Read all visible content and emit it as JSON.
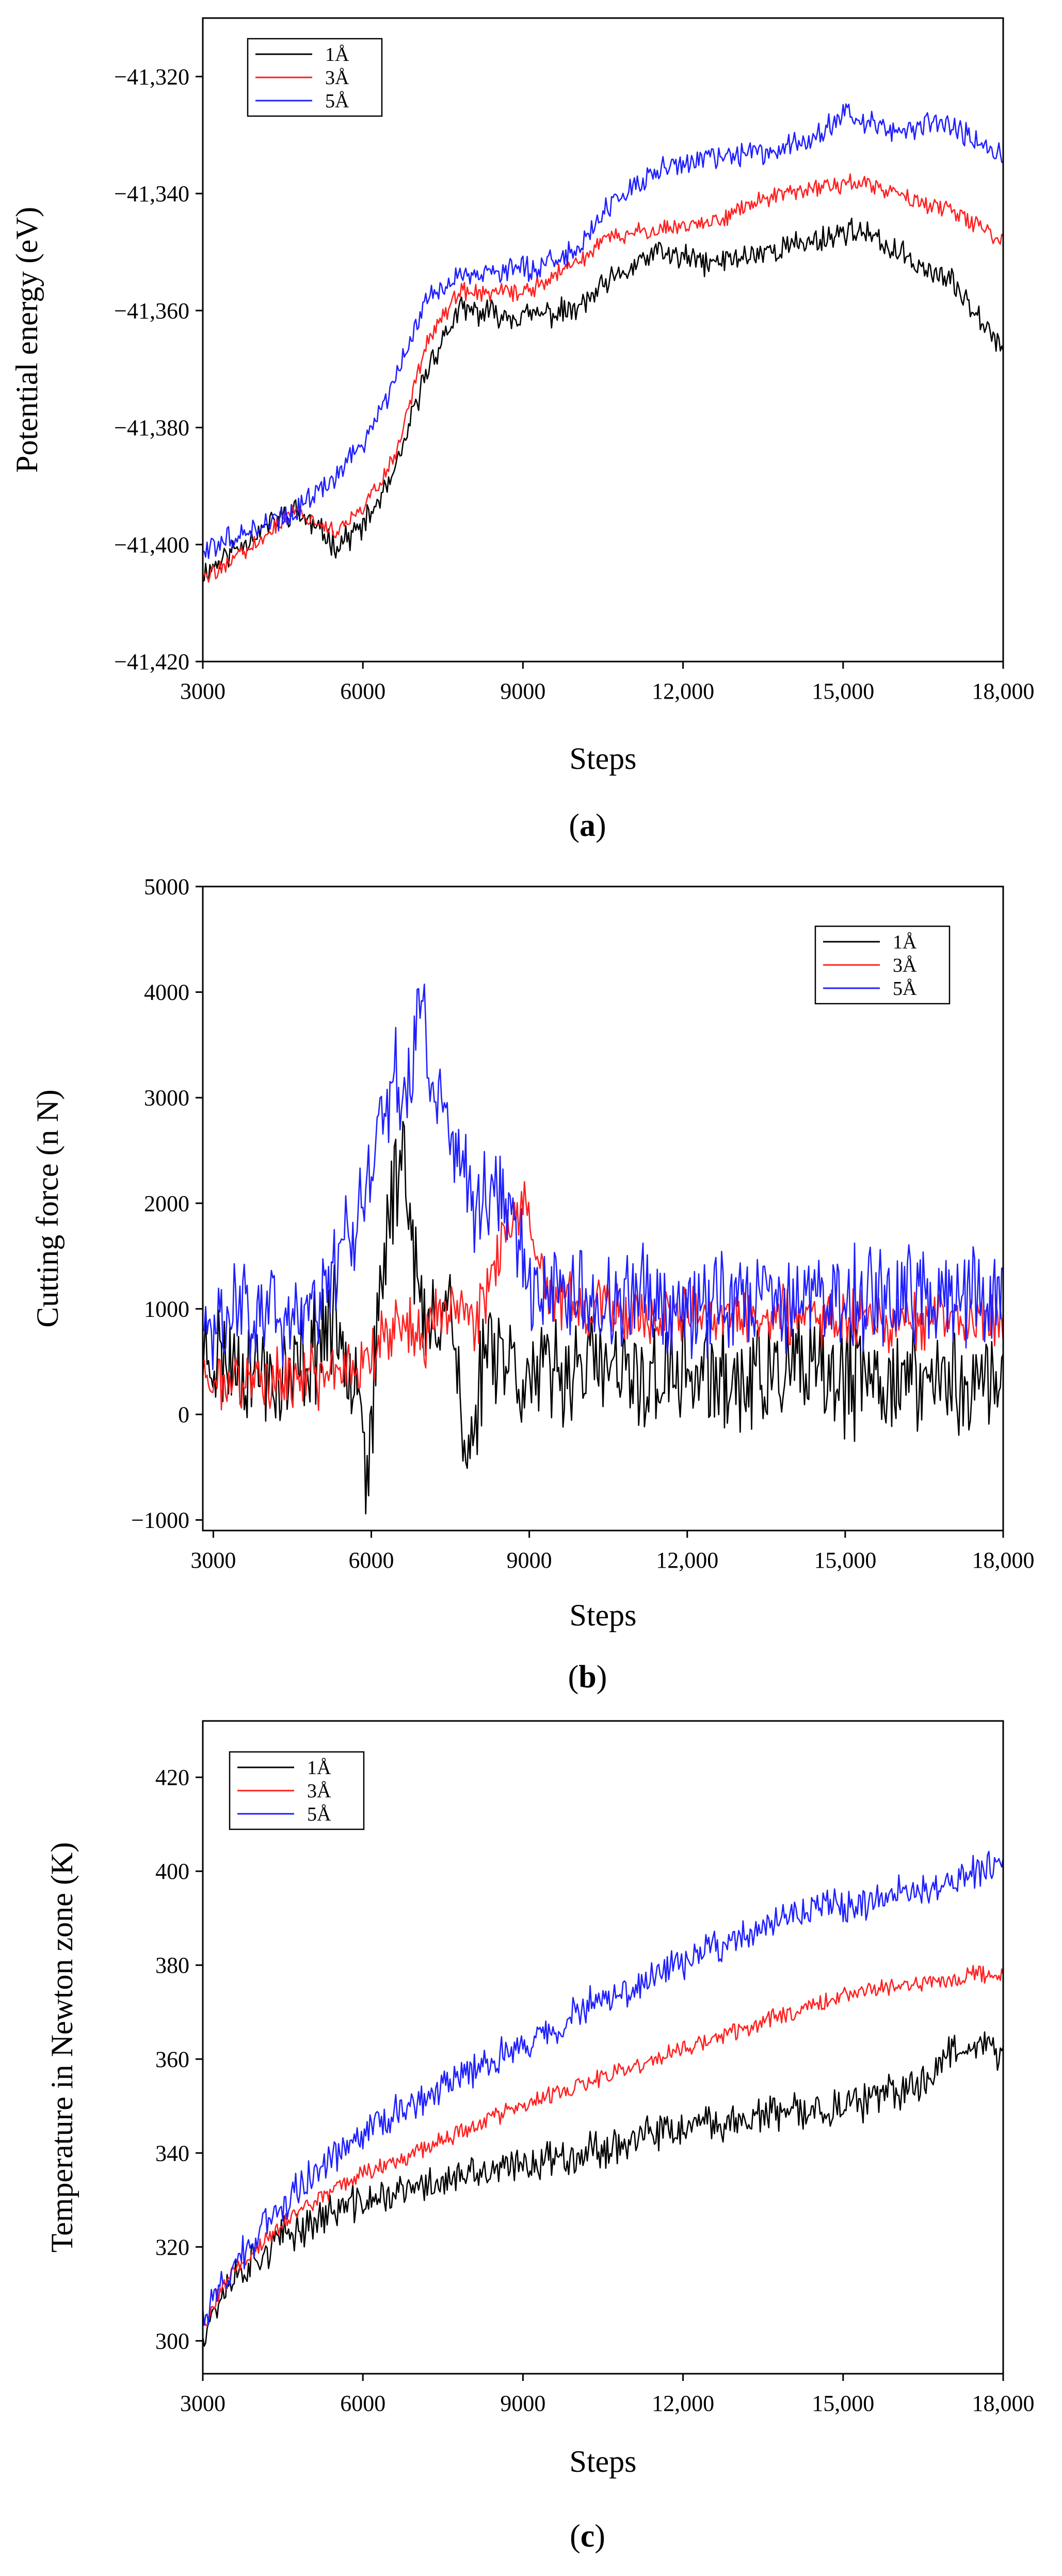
{
  "chart_data": [
    {
      "type": "line",
      "panel_label": "a",
      "xlabel": "Steps",
      "ylabel": "Potential energy (eV)",
      "xlim": [
        3000,
        18000
      ],
      "ylim": [
        -41420,
        -41310
      ],
      "xticks": [
        3000,
        6000,
        9000,
        12000,
        15000,
        18000
      ],
      "xtick_labels": [
        "3000",
        "6000",
        "9000",
        "12,000",
        "15,000",
        "18,000"
      ],
      "yticks": [
        -41420,
        -41400,
        -41380,
        -41360,
        -41340,
        -41320
      ],
      "ytick_labels": [
        "−41,420",
        "−41,400",
        "−41,380",
        "−41,360",
        "−41,340",
        "−41,320"
      ],
      "legend_position": "top-left",
      "noise_seed": 11,
      "series": [
        {
          "name": "1Å",
          "color": "#000000",
          "noise": 1.8,
          "x": [
            3000,
            4000,
            4700,
            5500,
            6000,
            6600,
            7200,
            7800,
            9000,
            10000,
            10500,
            11500,
            12500,
            13500,
            14500,
            15200,
            16000,
            17000,
            17500,
            18000
          ],
          "y": [
            -41405,
            -41398,
            -41394,
            -41400,
            -41397,
            -41388,
            -41370,
            -41360,
            -41361,
            -41360,
            -41356,
            -41350,
            -41352,
            -41350,
            -41348,
            -41346,
            -41350,
            -41355,
            -41360,
            -41366
          ]
        },
        {
          "name": "3Å",
          "color": "#ff2020",
          "noise": 1.2,
          "x": [
            3000,
            4000,
            4700,
            5500,
            6000,
            6600,
            7200,
            7800,
            9000,
            10000,
            10500,
            11500,
            12500,
            13500,
            14500,
            15200,
            16000,
            17000,
            18000
          ],
          "y": [
            -41406,
            -41400,
            -41394,
            -41398,
            -41394,
            -41385,
            -41365,
            -41357,
            -41357,
            -41352,
            -41348,
            -41346,
            -41345,
            -41341,
            -41339,
            -41338,
            -41340,
            -41343,
            -41348
          ]
        },
        {
          "name": "5Å",
          "color": "#1f1fff",
          "noise": 1.6,
          "x": [
            3000,
            4000,
            4700,
            5500,
            6000,
            6600,
            7200,
            7800,
            9000,
            10000,
            10300,
            10500,
            11500,
            12500,
            13500,
            14500,
            15000,
            16000,
            16800,
            17500,
            18000
          ],
          "y": [
            -41401,
            -41397,
            -41395,
            -41388,
            -41383,
            -41372,
            -41358,
            -41354,
            -41353,
            -41350,
            -41346,
            -41343,
            -41336,
            -41334,
            -41333,
            -41330,
            -41326,
            -41330,
            -41327,
            -41331,
            -41334
          ]
        }
      ]
    },
    {
      "type": "line",
      "panel_label": "b",
      "xlabel": "Steps",
      "ylabel": "Cutting force (n N)",
      "xlim": [
        2800,
        18000
      ],
      "ylim": [
        -1100,
        5000
      ],
      "xticks": [
        3000,
        6000,
        9000,
        12000,
        15000,
        18000
      ],
      "xtick_labels": [
        "3000",
        "6000",
        "9000",
        "12,000",
        "15,000",
        "18,000"
      ],
      "yticks": [
        -1000,
        0,
        1000,
        2000,
        3000,
        4000,
        5000
      ],
      "ytick_labels": [
        "−1000",
        "0",
        "1000",
        "2000",
        "3000",
        "4000",
        "5000"
      ],
      "legend_position": "top-right",
      "noise_seed": 23,
      "series": [
        {
          "name": "1Å",
          "color": "#000000",
          "noise": 420,
          "x": [
            2800,
            3500,
            4500,
            5200,
            5800,
            5900,
            6300,
            6600,
            7000,
            7500,
            7800,
            8200,
            9000,
            10000,
            11000,
            12000,
            13000,
            14000,
            15000,
            16000,
            17000,
            18000
          ],
          "y": [
            600,
            500,
            300,
            900,
            400,
            -700,
            1800,
            2600,
            700,
            1200,
            -600,
            800,
            300,
            500,
            300,
            400,
            300,
            400,
            300,
            350,
            300,
            300
          ]
        },
        {
          "name": "3Å",
          "color": "#ff2020",
          "noise": 230,
          "x": [
            2800,
            4000,
            5000,
            5800,
            6500,
            7000,
            7500,
            8000,
            8500,
            8900,
            9300,
            10000,
            11000,
            12000,
            13000,
            14000,
            15000,
            16000,
            17000,
            18000
          ],
          "y": [
            350,
            320,
            350,
            500,
            900,
            700,
            1100,
            900,
            1700,
            1900,
            1200,
            1000,
            950,
            900,
            950,
            900,
            950,
            900,
            900,
            850
          ]
        },
        {
          "name": "5Å",
          "color": "#1f1fff",
          "noise": 380,
          "x": [
            2800,
            3500,
            4500,
            5300,
            5800,
            6400,
            6700,
            7000,
            7100,
            7400,
            8000,
            8500,
            9000,
            10000,
            11000,
            12000,
            13000,
            14000,
            15000,
            16000,
            17000,
            18000
          ],
          "y": [
            900,
            1000,
            900,
            1300,
            1900,
            3300,
            3100,
            4200,
            3100,
            2900,
            1900,
            2300,
            1200,
            1100,
            1100,
            1050,
            1150,
            1100,
            1100,
            1100,
            1150,
            1100
          ]
        }
      ]
    },
    {
      "type": "line",
      "panel_label": "c",
      "xlabel": "Steps",
      "ylabel": "Temperature in Newton zone (K)",
      "xlim": [
        3000,
        18000
      ],
      "ylim": [
        293,
        432
      ],
      "xticks": [
        3000,
        6000,
        9000,
        12000,
        15000,
        18000
      ],
      "xtick_labels": [
        "3000",
        "6000",
        "9000",
        "12,000",
        "15,000",
        "18,000"
      ],
      "yticks": [
        300,
        320,
        340,
        360,
        380,
        400,
        420
      ],
      "ytick_labels": [
        "300",
        "320",
        "340",
        "360",
        "380",
        "400",
        "420"
      ],
      "legend_position": "top-left",
      "noise_seed": 37,
      "series": [
        {
          "name": "1Å",
          "color": "#000000",
          "noise": 3.2,
          "x": [
            3000,
            3500,
            4500,
            5500,
            6500,
            7500,
            8500,
            9500,
            10500,
            11500,
            12500,
            13500,
            14500,
            15500,
            16500,
            17000,
            17500,
            18000
          ],
          "y": [
            302,
            313,
            322,
            328,
            331,
            334,
            336,
            339,
            341,
            344,
            346,
            348,
            349,
            351,
            355,
            362,
            364,
            360
          ]
        },
        {
          "name": "3Å",
          "color": "#ff2020",
          "noise": 1.6,
          "x": [
            3000,
            3500,
            4500,
            5500,
            6500,
            7500,
            8500,
            9500,
            10500,
            11500,
            12500,
            13500,
            14500,
            15500,
            16500,
            17500,
            18000
          ],
          "y": [
            303,
            314,
            325,
            333,
            338,
            343,
            348,
            352,
            356,
            360,
            364,
            368,
            372,
            375,
            376,
            378,
            378
          ]
        },
        {
          "name": "5Å",
          "color": "#1f1fff",
          "noise": 3.0,
          "x": [
            3000,
            3500,
            4500,
            5500,
            6500,
            7500,
            8500,
            9500,
            10500,
            11500,
            12500,
            13500,
            14500,
            15500,
            16500,
            17000,
            17500,
            18000
          ],
          "y": [
            305,
            315,
            329,
            340,
            348,
            354,
            360,
            366,
            373,
            378,
            384,
            388,
            392,
            394,
            396,
            397,
            400,
            403
          ]
        }
      ]
    }
  ]
}
